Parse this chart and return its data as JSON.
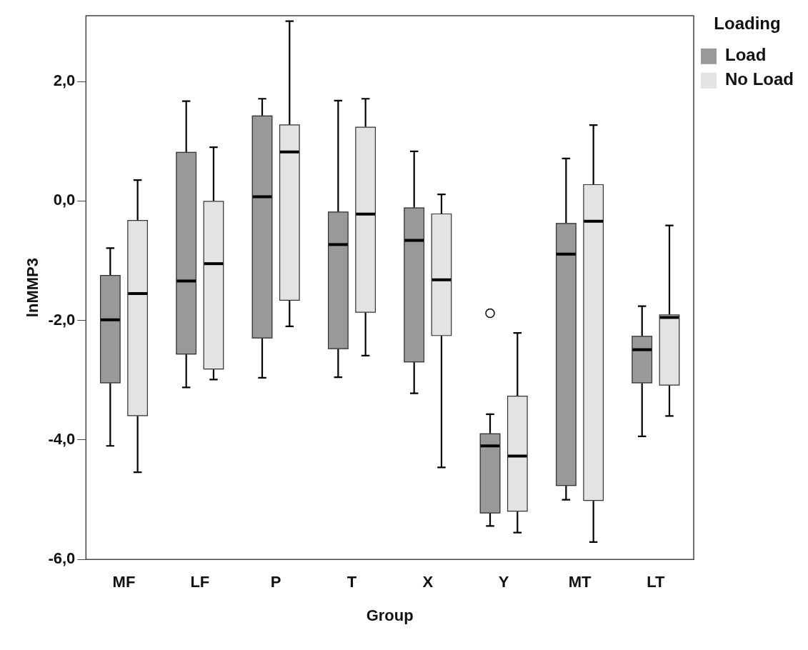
{
  "chart_data": {
    "type": "box",
    "xlabel": "Group",
    "ylabel": "lnMMP3",
    "legend_title": "Loading",
    "legend": "top right",
    "categories": [
      "MF",
      "LF",
      "P",
      "T",
      "X",
      "Y",
      "MT",
      "LT"
    ],
    "ylim": [
      -6,
      3.1
    ],
    "yticks": [
      {
        "value": -6,
        "label": "-6,0"
      },
      {
        "value": -4,
        "label": "-4,0"
      },
      {
        "value": -2,
        "label": "-2,0"
      },
      {
        "value": 0,
        "label": "0,0"
      },
      {
        "value": 2,
        "label": "2,0"
      }
    ],
    "series": [
      {
        "name": "Load",
        "color": "#999999",
        "boxes": [
          {
            "low": -4.1,
            "q1": -3.05,
            "median": -1.99,
            "q3": -1.24,
            "high": -0.79
          },
          {
            "low": -3.12,
            "q1": -2.57,
            "median": -1.34,
            "q3": 0.82,
            "high": 1.67
          },
          {
            "low": -2.96,
            "q1": -2.3,
            "median": 0.07,
            "q3": 1.43,
            "high": 1.71
          },
          {
            "low": -2.95,
            "q1": -2.48,
            "median": -0.73,
            "q3": -0.18,
            "high": 1.68
          },
          {
            "low": -3.22,
            "q1": -2.7,
            "median": -0.66,
            "q3": -0.11,
            "high": 0.83
          },
          {
            "low": -5.44,
            "q1": -5.23,
            "median": -4.1,
            "q3": -3.89,
            "high": -3.57,
            "outliers": [
              -1.88
            ]
          },
          {
            "low": -5.0,
            "q1": -4.77,
            "median": -0.89,
            "q3": -0.37,
            "high": 0.71
          },
          {
            "low": -3.94,
            "q1": -3.05,
            "median": -2.49,
            "q3": -2.26,
            "high": -1.76
          }
        ]
      },
      {
        "name": "No Load",
        "color": "#e3e3e3",
        "boxes": [
          {
            "low": -4.54,
            "q1": -3.6,
            "median": -1.55,
            "q3": -0.32,
            "high": 0.35
          },
          {
            "low": -2.99,
            "q1": -2.82,
            "median": -1.05,
            "q3": 0.0,
            "high": 0.9
          },
          {
            "low": -2.1,
            "q1": -1.67,
            "median": 0.82,
            "q3": 1.28,
            "high": 3.01
          },
          {
            "low": -2.59,
            "q1": -1.87,
            "median": -0.22,
            "q3": 1.24,
            "high": 1.71
          },
          {
            "low": -4.46,
            "q1": -2.26,
            "median": -1.32,
            "q3": -0.21,
            "high": 0.11
          },
          {
            "low": -5.55,
            "q1": -5.2,
            "median": -4.27,
            "q3": -3.26,
            "high": -2.21
          },
          {
            "low": -5.71,
            "q1": -5.02,
            "median": -0.34,
            "q3": 0.28,
            "high": 1.27
          },
          {
            "low": -3.6,
            "q1": -3.09,
            "median": -1.95,
            "q3": -1.9,
            "high": -0.41
          }
        ]
      }
    ]
  }
}
